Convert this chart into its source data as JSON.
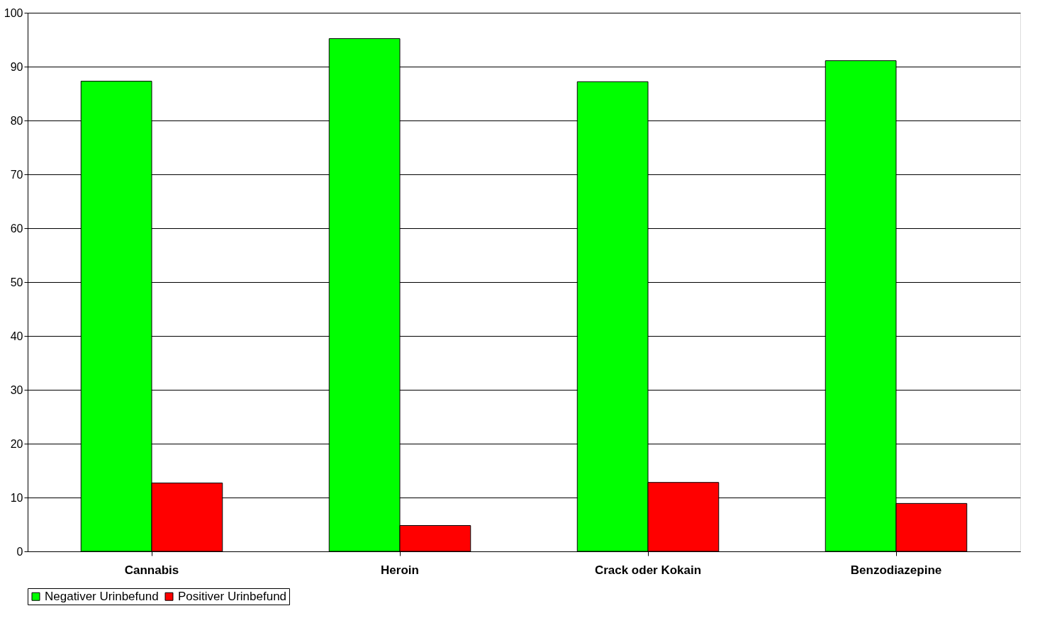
{
  "chart_data": {
    "type": "bar",
    "categories": [
      "Cannabis",
      "Heroin",
      "Crack oder Kokain",
      "Benzodiazepine"
    ],
    "series": [
      {
        "name": "Negativer Urinbefund",
        "color": "#00ff00",
        "values": [
          87.3,
          95.2,
          87.2,
          91.1
        ]
      },
      {
        "name": "Positiver Urinbefund",
        "color": "#ff0000",
        "values": [
          12.7,
          4.8,
          12.8,
          8.9
        ]
      }
    ],
    "ylim": [
      0,
      100
    ],
    "yticks": [
      0,
      10,
      20,
      30,
      40,
      50,
      60,
      70,
      80,
      90,
      100
    ],
    "grid": "y",
    "legend": "bottom"
  }
}
